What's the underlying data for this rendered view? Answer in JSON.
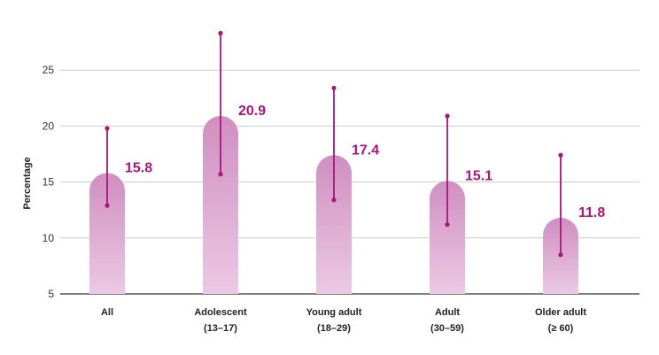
{
  "chart_data": {
    "type": "bar",
    "ylabel": "Percentage",
    "xlabel": "",
    "ylim": [
      5,
      30
    ],
    "yticks": [
      5,
      10,
      15,
      20,
      25
    ],
    "grid": true,
    "categories": [
      {
        "line1": "All",
        "line2": ""
      },
      {
        "line1": "Adolescent",
        "line2": "(13–17)"
      },
      {
        "line1": "Young adult",
        "line2": "(18–29)"
      },
      {
        "line1": "Adult",
        "line2": "(30–59)"
      },
      {
        "line1": "Older adult",
        "line2": "(≥ 60)"
      }
    ],
    "values": [
      15.8,
      20.9,
      17.4,
      15.1,
      11.8
    ],
    "value_labels": [
      "15.8",
      "20.9",
      "17.4",
      "15.1",
      "11.8"
    ],
    "error_low": [
      12.9,
      15.7,
      13.4,
      11.2,
      8.5
    ],
    "error_high": [
      19.8,
      28.3,
      23.4,
      20.9,
      17.4
    ],
    "colors": {
      "bar_top": "#cf8fc0",
      "bar_bottom": "#ecc9e4",
      "error_bar": "#a8157c",
      "label": "#a8157c",
      "grid": "#cccccc"
    }
  }
}
